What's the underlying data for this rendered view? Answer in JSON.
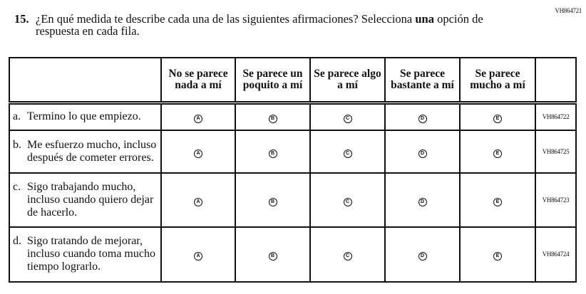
{
  "item_code": "VH864721",
  "question": {
    "number": "15.",
    "text": "¿En qué medida te describe cada una de las siguientes afirmaciones? Selecciona ",
    "emphasis": "una",
    "text_end": " opción de respuesta en cada fila."
  },
  "columns": [
    "No se parece nada a mí",
    "Se parece un poquito a mí",
    "Se parece algo a mí",
    "Se parece bastante a mí",
    "Se parece mucho a mí"
  ],
  "bubbles": [
    "A",
    "B",
    "C",
    "D",
    "E"
  ],
  "rows": [
    {
      "letter": "a.",
      "text": "Termino lo que empiezo.",
      "code": "VH864722"
    },
    {
      "letter": "b.",
      "text": "Me esfuerzo mucho, incluso después de cometer errores.",
      "code": "VH864725"
    },
    {
      "letter": "c.",
      "text": "Sigo trabajando mucho, incluso cuando quiero dejar de hacerlo.",
      "code": "VH864723"
    },
    {
      "letter": "d.",
      "text": "Sigo tratando de mejorar, incluso cuando toma mucho tiempo lograrlo.",
      "code": "VH864724"
    }
  ]
}
